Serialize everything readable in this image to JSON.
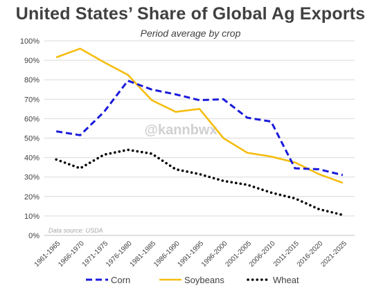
{
  "chart_data": {
    "type": "line",
    "title": "United States’ Share of Global Ag Exports",
    "subtitle": "Period average by crop",
    "watermark": "@kannbwx",
    "source_note": "Data source: USDA",
    "categories": [
      "1961-1965",
      "1966-1970",
      "1971-1975",
      "1976-1980",
      "1981-1985",
      "1986-1990",
      "1991-1995",
      "1996-2000",
      "2001-2005",
      "2006-2010",
      "2011-2015",
      "2016-2020",
      "2021-2025"
    ],
    "y_ticks": [
      "0%",
      "10%",
      "20%",
      "30%",
      "40%",
      "50%",
      "60%",
      "70%",
      "80%",
      "90%",
      "100%"
    ],
    "ylim": [
      0,
      100
    ],
    "grid": true,
    "legend": "bottom",
    "series": [
      {
        "name": "Corn",
        "color": "#1a1adb",
        "style": "dashed",
        "values": [
          53.5,
          51.5,
          63.5,
          79.5,
          75,
          72.5,
          69.5,
          70,
          60.5,
          58.5,
          34.5,
          34,
          31
        ]
      },
      {
        "name": "Soybeans",
        "color": "#f5bd10",
        "style": "solid",
        "values": [
          91.5,
          96,
          89,
          82.5,
          69.5,
          63.5,
          65,
          50,
          42.5,
          40.5,
          37.5,
          31.5,
          27
        ]
      },
      {
        "name": "Wheat",
        "color": "#000000",
        "style": "dotted",
        "values": [
          39,
          34.5,
          41.5,
          44,
          42,
          34,
          31.5,
          28,
          26,
          22,
          19,
          13.5,
          10.5
        ]
      }
    ]
  }
}
